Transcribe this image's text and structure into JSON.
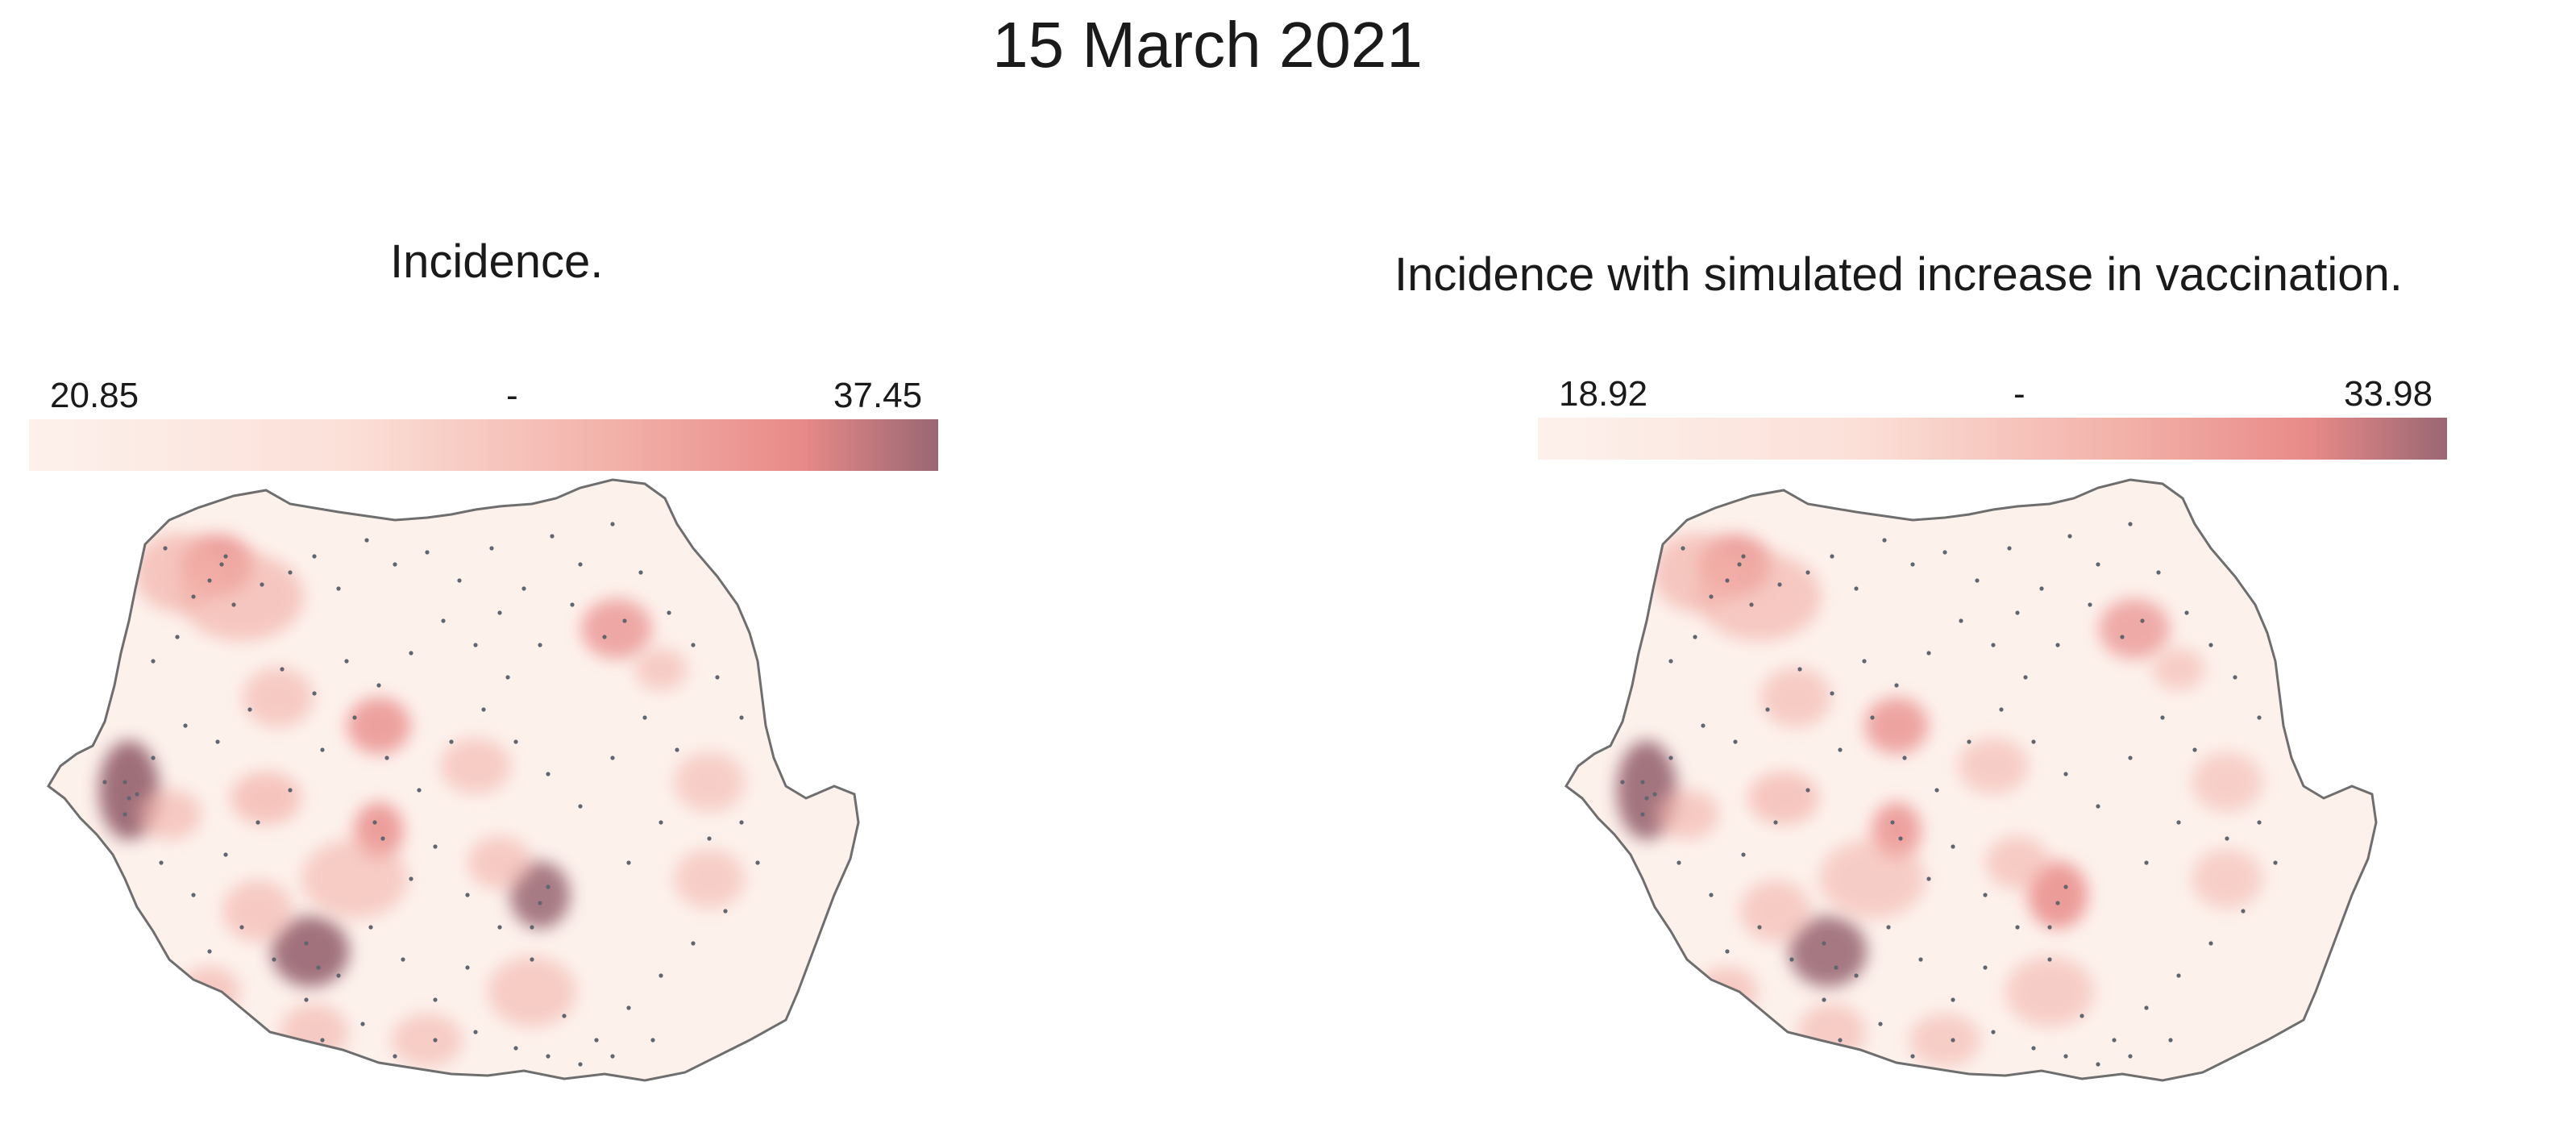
{
  "title": "15 March 2021",
  "panels": [
    {
      "title": "Incidence.",
      "legend": {
        "min": "20.85",
        "mid": "-",
        "max": "37.45"
      }
    },
    {
      "title": "Incidence with simulated increase in vaccination.",
      "legend": {
        "min": "18.92",
        "mid": "-",
        "max": "33.98"
      }
    }
  ],
  "colors": {
    "low": "#fdf1ec",
    "mid": "#f2b0a8",
    "high": "#e88a88",
    "max": "#9a6773",
    "border": "#6e6e6e",
    "points": "#5f6670"
  }
}
